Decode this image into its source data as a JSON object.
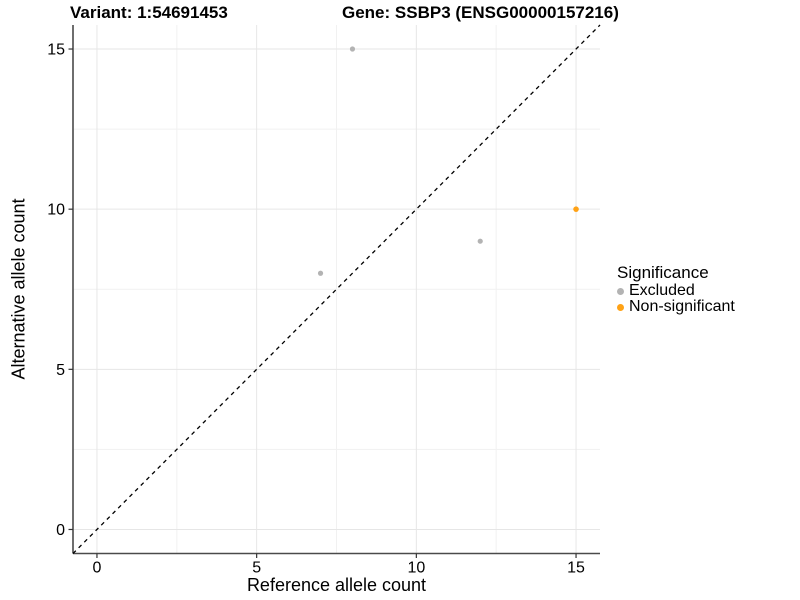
{
  "chart_data": {
    "type": "scatter",
    "titles": {
      "left": "Variant: 1:54691453",
      "right": "Gene: SSBP3 (ENSG00000157216)"
    },
    "xlabel": "Reference allele count",
    "ylabel": "Alternative allele count",
    "xlim": [
      -0.75,
      15.75
    ],
    "ylim": [
      -0.75,
      15.75
    ],
    "x_ticks": [
      0,
      5,
      10,
      15
    ],
    "y_ticks": [
      0,
      5,
      10,
      15
    ],
    "grid": "major+minor",
    "legend_position": "right",
    "legend_title": "Significance",
    "series": [
      {
        "name": "Excluded",
        "color": "#B3B3B3",
        "point_radius": 2.6,
        "points": [
          [
            7,
            8
          ],
          [
            8,
            15
          ],
          [
            12,
            9
          ]
        ]
      },
      {
        "name": "Non-significant",
        "color": "#FFA216",
        "point_radius": 2.8,
        "points": [
          [
            15,
            10
          ]
        ]
      }
    ],
    "identity_line": {
      "slope": 1,
      "intercept": 0,
      "style": "dashed",
      "color": "#000000"
    }
  },
  "style": {
    "background": "#FFFFFF",
    "grid_major_color": "#E6E6E6",
    "grid_minor_color": "#F1F1F1",
    "axis_line_color": "#4A4A4A",
    "tick_color": "#333333",
    "text_color": "#000000"
  }
}
